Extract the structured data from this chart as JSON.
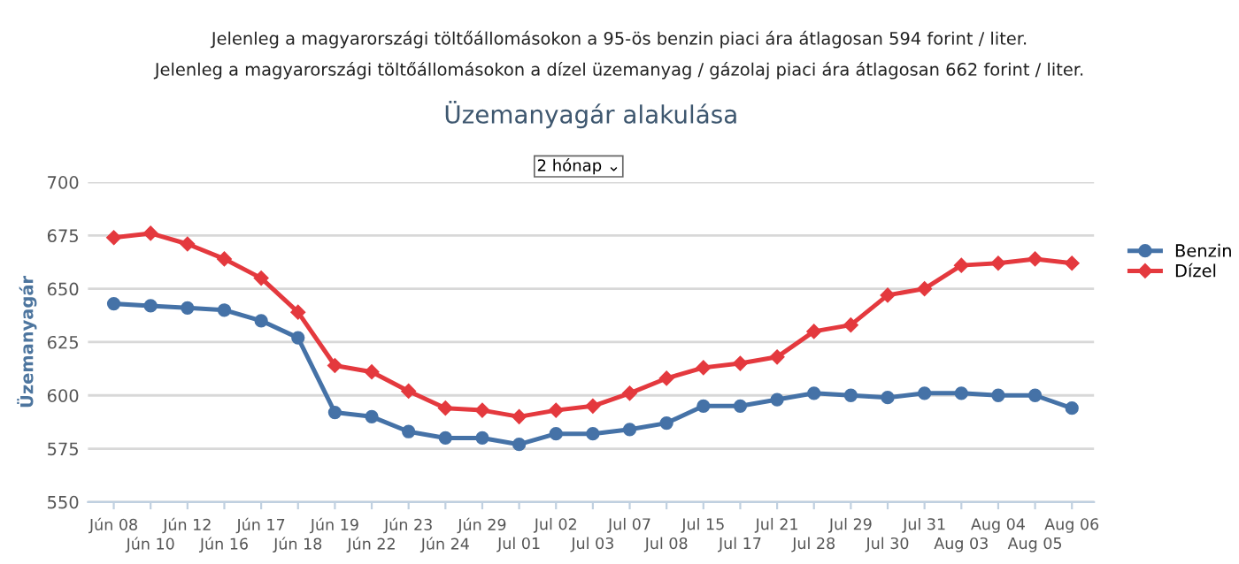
{
  "chart_data": {
    "type": "line",
    "title": "Üzemanyagár alakulása",
    "ylabel": "Üzemanyagár",
    "annotations": [
      "Jelenleg a magyarországi töltőállomásokon a 95-ös benzin piaci ára átlagosan 594 forint / liter.",
      "Jelenleg a magyarországi töltőállomásokon a dízel üzemanyag / gázolaj piaci ára átlagosan 662 forint / liter.",
      "2 hónap ⌄"
    ],
    "categories": [
      "Jún 08",
      "Jún 10",
      "Jún 12",
      "Jún 16",
      "Jún 17",
      "Jún 18",
      "Jún 19",
      "Jún 22",
      "Jún 23",
      "Jún 24",
      "Jún 29",
      "Jul 01",
      "Jul 02",
      "Jul 03",
      "Jul 07",
      "Jul 08",
      "Jul 15",
      "Jul 17",
      "Jul 21",
      "Jul 28",
      "Jul 29",
      "Jul 30",
      "Jul 31",
      "Aug 03",
      "Aug 04",
      "Aug 05",
      "Aug 06"
    ],
    "series": [
      {
        "name": "Benzin",
        "color": "#4572a7",
        "marker": "circle",
        "values": [
          643,
          642,
          641,
          640,
          635,
          627,
          592,
          590,
          583,
          580,
          580,
          577,
          582,
          582,
          584,
          587,
          595,
          595,
          598,
          601,
          600,
          599,
          601,
          601,
          600,
          600,
          594
        ]
      },
      {
        "name": "Dízel",
        "color": "#e4393e",
        "marker": "diamond",
        "values": [
          674,
          676,
          671,
          664,
          655,
          639,
          614,
          611,
          602,
          594,
          593,
          590,
          593,
          595,
          601,
          608,
          613,
          615,
          618,
          630,
          633,
          647,
          650,
          661,
          662,
          664,
          662
        ]
      }
    ],
    "ylim": [
      550,
      700
    ],
    "yticks": [
      550,
      575,
      600,
      625,
      650,
      675,
      700
    ],
    "grid": "y",
    "legend": "right",
    "line_style": "solid"
  }
}
